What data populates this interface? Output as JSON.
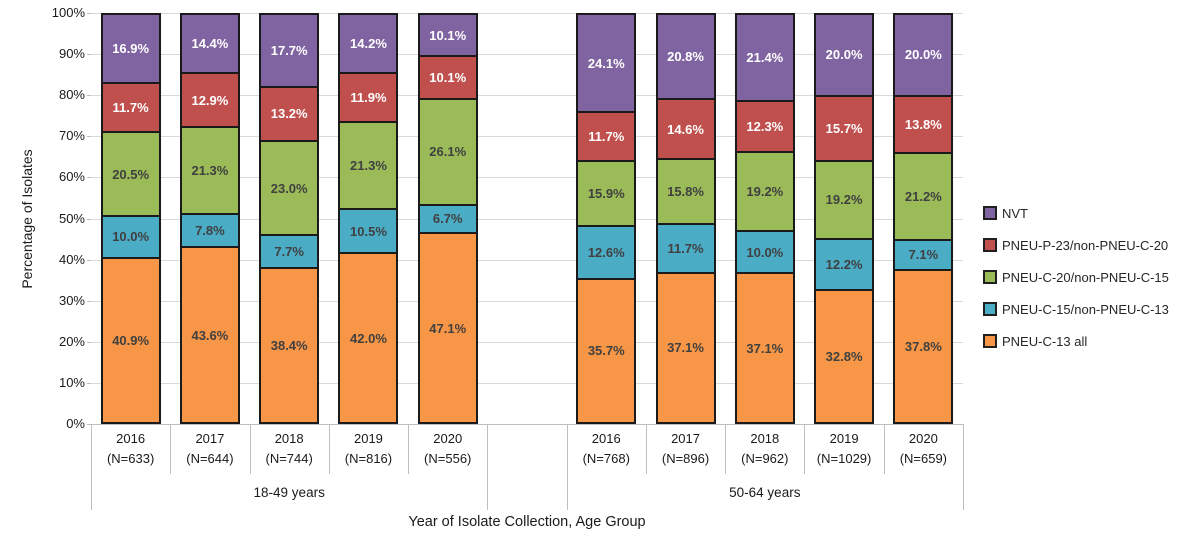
{
  "chart_data": {
    "type": "bar",
    "stacked": true,
    "percent_stacked": true,
    "title": "",
    "ylabel": "Percentage of Isolates",
    "xlabel": "Year of Isolate Collection, Age Group",
    "ylim": [
      0,
      100
    ],
    "yticks": [
      "0%",
      "10%",
      "20%",
      "30%",
      "40%",
      "50%",
      "60%",
      "70%",
      "80%",
      "90%",
      "100%"
    ],
    "grid": "horizontal",
    "legend_position": "right",
    "series": [
      {
        "id": "nvt",
        "name": "NVT",
        "color": "#8064A2",
        "label_color": "#FFFFFF"
      },
      {
        "id": "pneu_p23",
        "name": "PNEU-P-23/non-PNEU-C-20",
        "color": "#C0504D",
        "label_color": "#FFFFFF"
      },
      {
        "id": "pneu_c20",
        "name": "PNEU-C-20/non-PNEU-C-15",
        "color": "#9BBB59",
        "label_color": "#404040"
      },
      {
        "id": "pneu_c15",
        "name": "PNEU-C-15/non-PNEU-C-13",
        "color": "#4BACC6",
        "label_color": "#404040"
      },
      {
        "id": "pneu_c13",
        "name": "PNEU-C-13 all",
        "color": "#F79646",
        "label_color": "#404040"
      }
    ],
    "stack_order_bottom_to_top": [
      "pneu_c13",
      "pneu_c15",
      "pneu_c20",
      "pneu_p23",
      "nvt"
    ],
    "groups": [
      {
        "label": "18-49 years",
        "bars": [
          {
            "year": "2016",
            "n": "(N=633)",
            "values": {
              "pneu_c13": 40.9,
              "pneu_c15": 10.0,
              "pneu_c20": 20.5,
              "pneu_p23": 11.7,
              "nvt": 16.9
            }
          },
          {
            "year": "2017",
            "n": "(N=644)",
            "values": {
              "pneu_c13": 43.6,
              "pneu_c15": 7.8,
              "pneu_c20": 21.3,
              "pneu_p23": 12.9,
              "nvt": 14.4
            }
          },
          {
            "year": "2018",
            "n": "(N=744)",
            "values": {
              "pneu_c13": 38.4,
              "pneu_c15": 7.7,
              "pneu_c20": 23.0,
              "pneu_p23": 13.2,
              "nvt": 17.7
            }
          },
          {
            "year": "2019",
            "n": "(N=816)",
            "values": {
              "pneu_c13": 42.0,
              "pneu_c15": 10.5,
              "pneu_c20": 21.3,
              "pneu_p23": 11.9,
              "nvt": 14.2
            }
          },
          {
            "year": "2020",
            "n": "(N=556)",
            "values": {
              "pneu_c13": 47.1,
              "pneu_c15": 6.7,
              "pneu_c20": 26.1,
              "pneu_p23": 10.1,
              "nvt": 10.1
            }
          }
        ]
      },
      {
        "label": "50-64 years",
        "bars": [
          {
            "year": "2016",
            "n": "(N=768)",
            "values": {
              "pneu_c13": 35.7,
              "pneu_c15": 12.6,
              "pneu_c20": 15.9,
              "pneu_p23": 11.7,
              "nvt": 24.1
            }
          },
          {
            "year": "2017",
            "n": "(N=896)",
            "values": {
              "pneu_c13": 37.1,
              "pneu_c15": 11.7,
              "pneu_c20": 15.8,
              "pneu_p23": 14.6,
              "nvt": 20.8
            }
          },
          {
            "year": "2018",
            "n": "(N=962)",
            "values": {
              "pneu_c13": 37.1,
              "pneu_c15": 10.0,
              "pneu_c20": 19.2,
              "pneu_p23": 12.3,
              "nvt": 21.4
            }
          },
          {
            "year": "2019",
            "n": "(N=1029)",
            "values": {
              "pneu_c13": 32.8,
              "pneu_c15": 12.2,
              "pneu_c20": 19.2,
              "pneu_p23": 15.7,
              "nvt": 20.0
            }
          },
          {
            "year": "2020",
            "n": "(N=659)",
            "values": {
              "pneu_c13": 37.8,
              "pneu_c15": 7.1,
              "pneu_c20": 21.2,
              "pneu_p23": 13.8,
              "nvt": 20.0
            }
          }
        ]
      }
    ],
    "colors": {
      "gridline": "#D9D9D9",
      "axis_line": "#BFBFBF",
      "bar_border": "#1A1A1A",
      "text": "#262626"
    }
  }
}
